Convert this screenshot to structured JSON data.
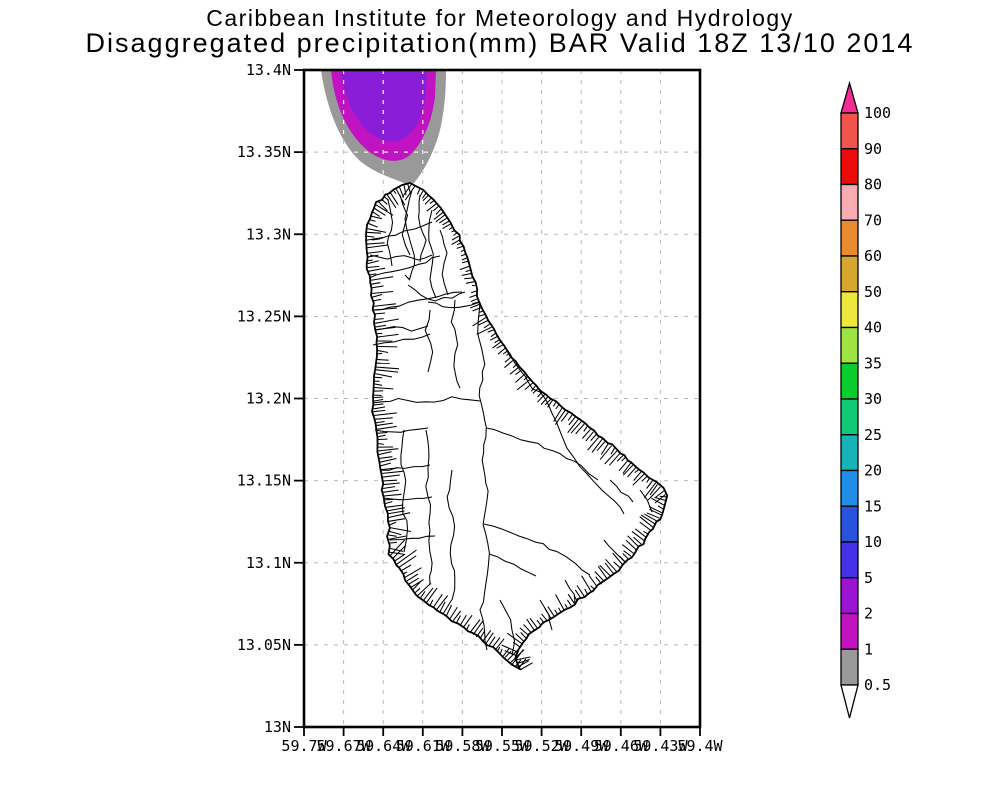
{
  "title": {
    "line1": "Caribbean Institute for Meteorology and Hydrology",
    "line2": "Disaggregated precipitation(mm) BAR Valid 18Z 13/10 2014"
  },
  "map": {
    "lat_labels": [
      "13.4N",
      "13.35N",
      "13.3N",
      "13.25N",
      "13.2N",
      "13.15N",
      "13.1N",
      "13.05N",
      "13N"
    ],
    "lon_labels": [
      "59.7W",
      "59.67W",
      "59.64W",
      "59.61W",
      "59.58W",
      "59.55W",
      "59.52W",
      "59.49W",
      "59.46W",
      "59.43W",
      "59.4W"
    ],
    "frame_color": "#000000",
    "grid_color": "#b8b8b8",
    "grid_color_over_shading": "#ffffff",
    "coastline_color": "#000000",
    "land_fill": "#ffffff"
  },
  "colorbar": {
    "units": "mm",
    "boundary_labels": [
      "100",
      "90",
      "80",
      "70",
      "60",
      "50",
      "40",
      "35",
      "30",
      "25",
      "20",
      "15",
      "10",
      "5",
      "2",
      "1",
      "0.5"
    ],
    "segment_colors_top_to_bottom": [
      "#f1544b",
      "#ec0a0a",
      "#f6acb1",
      "#ea8a2f",
      "#d6a72e",
      "#ede83b",
      "#9fe341",
      "#0bcc2f",
      "#12c977",
      "#16b3b8",
      "#1e8ee9",
      "#2853dd",
      "#4630e8",
      "#9b14d3",
      "#c213c2",
      "#999999"
    ],
    "arrow_top_color": "#f12c95",
    "arrow_bottom_color": "#ffffff"
  },
  "precipitation": {
    "contour_fills": [
      {
        "level_range_mm": "0.5-1",
        "color": "#999999"
      },
      {
        "level_range_mm": "1-2",
        "color": "#c213c2"
      },
      {
        "level_range_mm": "2-5",
        "color": "#8a1ed8"
      }
    ],
    "cell_location": "offshore, north-northwest of the island, clipped by top frame edge"
  },
  "chart_data": {
    "type": "heatmap",
    "title": "Caribbean Institute for Meteorology and Hydrology",
    "subtitle": "Disaggregated precipitation(mm) BAR Valid 18Z 13/10 2014",
    "units": "mm",
    "x_tick_labels": [
      "59.7W",
      "59.67W",
      "59.64W",
      "59.61W",
      "59.58W",
      "59.55W",
      "59.52W",
      "59.49W",
      "59.46W",
      "59.43W",
      "59.4W"
    ],
    "y_tick_labels": [
      "13N",
      "13.05N",
      "13.1N",
      "13.15N",
      "13.2N",
      "13.25N",
      "13.3N",
      "13.35N",
      "13.4N"
    ],
    "lon_range_deg_w": [
      59.7,
      59.4
    ],
    "lat_range_deg_n": [
      13.0,
      13.4
    ],
    "grid": "dashed",
    "legend_position": "right vertical colorbar",
    "colorbar_levels": [
      0.5,
      1,
      2,
      5,
      10,
      15,
      20,
      25,
      30,
      35,
      40,
      50,
      60,
      70,
      80,
      90,
      100
    ],
    "shaded_values_present_mm": [
      "0.5-1",
      "1-2",
      "2-5"
    ],
    "max_shaded_value_mm": "2-5"
  }
}
